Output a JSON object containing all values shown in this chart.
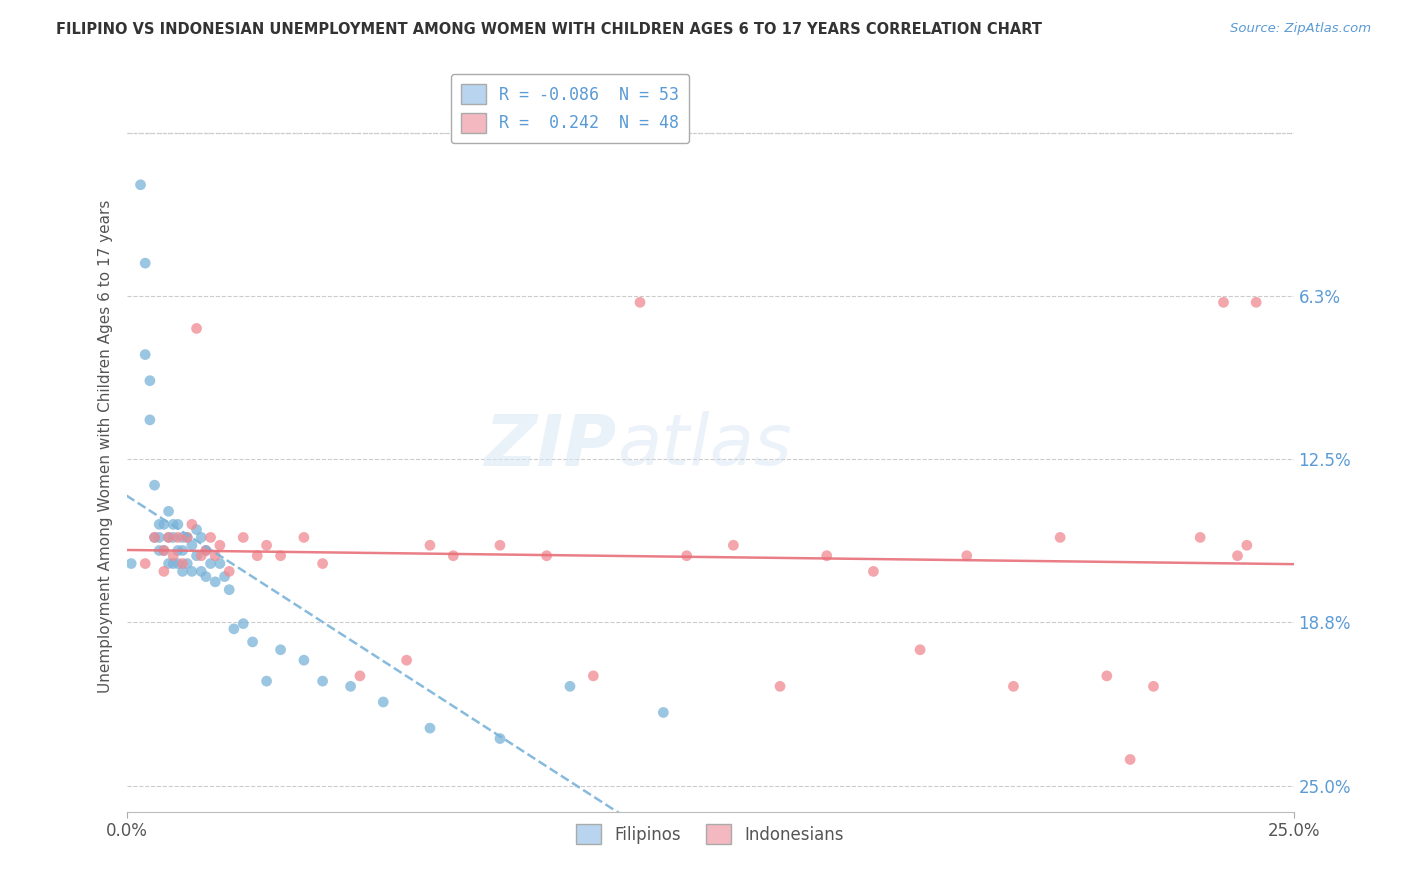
{
  "title": "FILIPINO VS INDONESIAN UNEMPLOYMENT AMONG WOMEN WITH CHILDREN AGES 6 TO 17 YEARS CORRELATION CHART",
  "source": "Source: ZipAtlas.com",
  "ylabel": "Unemployment Among Women with Children Ages 6 to 17 years",
  "xlim": [
    0.0,
    0.25
  ],
  "ylim": [
    -0.01,
    0.27
  ],
  "ytick_vals": [
    0.0,
    0.0625,
    0.125,
    0.1875,
    0.25
  ],
  "right_ytick_labels": [
    "25.0%",
    "18.8%",
    "12.5%",
    "6.3%",
    ""
  ],
  "xtick_vals": [
    0.0,
    0.25
  ],
  "xtick_labels": [
    "0.0%",
    "25.0%"
  ],
  "r_filipino": -0.086,
  "n_filipino": 53,
  "r_indonesian": 0.242,
  "n_indonesian": 48,
  "filipinos_color": "#7ab3d9",
  "indonesians_color": "#f08890",
  "trend_filipino_color": "#7ab3d9",
  "trend_indonesian_color": "#e8707a",
  "legend1_label1": "R = -0.086  N = 53",
  "legend1_label2": "R =  0.242  N = 48",
  "legend1_patch1_color": "#b8d4ee",
  "legend1_patch2_color": "#f4b8c1",
  "legend2_label1": "Filipinos",
  "legend2_label2": "Indonesians",
  "watermark_zip": "ZIP",
  "watermark_atlas": "atlas",
  "background_color": "#ffffff",
  "grid_color": "#cccccc",
  "title_color": "#333333",
  "source_color": "#5b9bd5",
  "axis_label_color": "#5b9bd5",
  "text_color": "#555555",
  "fil_x": [
    0.001,
    0.003,
    0.004,
    0.004,
    0.005,
    0.005,
    0.006,
    0.006,
    0.007,
    0.007,
    0.007,
    0.008,
    0.008,
    0.009,
    0.009,
    0.009,
    0.01,
    0.01,
    0.01,
    0.011,
    0.011,
    0.011,
    0.012,
    0.012,
    0.012,
    0.013,
    0.013,
    0.014,
    0.014,
    0.015,
    0.015,
    0.016,
    0.016,
    0.017,
    0.017,
    0.018,
    0.019,
    0.02,
    0.021,
    0.022,
    0.023,
    0.025,
    0.027,
    0.03,
    0.033,
    0.038,
    0.042,
    0.048,
    0.055,
    0.065,
    0.08,
    0.095,
    0.115
  ],
  "fil_y": [
    0.085,
    0.23,
    0.2,
    0.165,
    0.155,
    0.14,
    0.115,
    0.095,
    0.1,
    0.095,
    0.09,
    0.1,
    0.09,
    0.105,
    0.095,
    0.085,
    0.1,
    0.095,
    0.085,
    0.1,
    0.09,
    0.085,
    0.095,
    0.09,
    0.082,
    0.095,
    0.085,
    0.092,
    0.082,
    0.098,
    0.088,
    0.095,
    0.082,
    0.09,
    0.08,
    0.085,
    0.078,
    0.085,
    0.08,
    0.075,
    0.06,
    0.062,
    0.055,
    0.04,
    0.052,
    0.048,
    0.04,
    0.038,
    0.032,
    0.022,
    0.018,
    0.038,
    0.028
  ],
  "ind_x": [
    0.004,
    0.006,
    0.008,
    0.008,
    0.009,
    0.01,
    0.011,
    0.012,
    0.013,
    0.014,
    0.015,
    0.016,
    0.017,
    0.018,
    0.019,
    0.02,
    0.022,
    0.025,
    0.028,
    0.03,
    0.033,
    0.038,
    0.042,
    0.05,
    0.06,
    0.065,
    0.07,
    0.08,
    0.09,
    0.1,
    0.11,
    0.12,
    0.13,
    0.14,
    0.15,
    0.16,
    0.17,
    0.18,
    0.19,
    0.2,
    0.21,
    0.215,
    0.22,
    0.23,
    0.235,
    0.238,
    0.24,
    0.242
  ],
  "ind_y": [
    0.085,
    0.095,
    0.09,
    0.082,
    0.095,
    0.088,
    0.095,
    0.085,
    0.095,
    0.1,
    0.175,
    0.088,
    0.09,
    0.095,
    0.088,
    0.092,
    0.082,
    0.095,
    0.088,
    0.092,
    0.088,
    0.095,
    0.085,
    0.042,
    0.048,
    0.092,
    0.088,
    0.092,
    0.088,
    0.042,
    0.185,
    0.088,
    0.092,
    0.038,
    0.088,
    0.082,
    0.052,
    0.088,
    0.038,
    0.095,
    0.042,
    0.01,
    0.038,
    0.095,
    0.185,
    0.088,
    0.092,
    0.185
  ]
}
